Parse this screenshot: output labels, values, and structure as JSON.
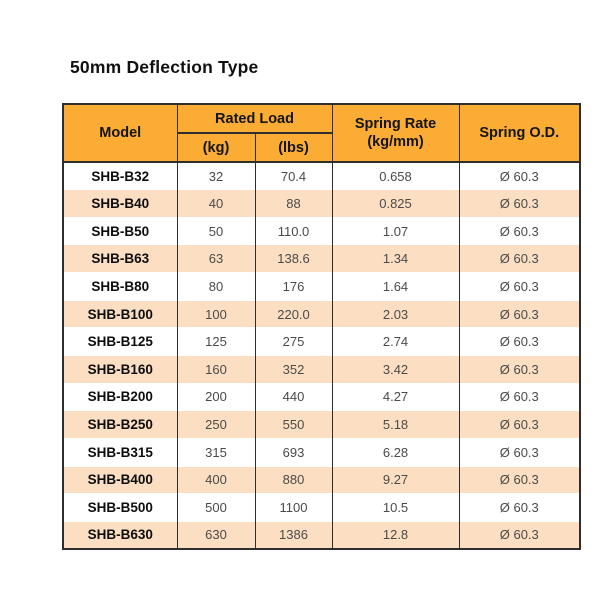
{
  "title": "50mm Deflection Type",
  "table": {
    "columns": {
      "model": "Model",
      "rated_load": "Rated Load",
      "kg": "(kg)",
      "lbs": "(lbs)",
      "spring_rate_line1": "Spring Rate",
      "spring_rate_line2": "(kg/mm)",
      "spring_od": "Spring O.D."
    },
    "rows": [
      {
        "model": "SHB-B32",
        "kg": "32",
        "lbs": "70.4",
        "spring_rate": "0.658",
        "spring_od": "Ø 60.3"
      },
      {
        "model": "SHB-B40",
        "kg": "40",
        "lbs": "88",
        "spring_rate": "0.825",
        "spring_od": "Ø 60.3"
      },
      {
        "model": "SHB-B50",
        "kg": "50",
        "lbs": "110.0",
        "spring_rate": "1.07",
        "spring_od": "Ø 60.3"
      },
      {
        "model": "SHB-B63",
        "kg": "63",
        "lbs": "138.6",
        "spring_rate": "1.34",
        "spring_od": "Ø 60.3"
      },
      {
        "model": "SHB-B80",
        "kg": "80",
        "lbs": "176",
        "spring_rate": "1.64",
        "spring_od": "Ø 60.3"
      },
      {
        "model": "SHB-B100",
        "kg": "100",
        "lbs": "220.0",
        "spring_rate": "2.03",
        "spring_od": "Ø 60.3"
      },
      {
        "model": "SHB-B125",
        "kg": "125",
        "lbs": "275",
        "spring_rate": "2.74",
        "spring_od": "Ø 60.3"
      },
      {
        "model": "SHB-B160",
        "kg": "160",
        "lbs": "352",
        "spring_rate": "3.42",
        "spring_od": "Ø 60.3"
      },
      {
        "model": "SHB-B200",
        "kg": "200",
        "lbs": "440",
        "spring_rate": "4.27",
        "spring_od": "Ø 60.3"
      },
      {
        "model": "SHB-B250",
        "kg": "250",
        "lbs": "550",
        "spring_rate": "5.18",
        "spring_od": "Ø 60.3"
      },
      {
        "model": "SHB-B315",
        "kg": "315",
        "lbs": "693",
        "spring_rate": "6.28",
        "spring_od": "Ø 60.3"
      },
      {
        "model": "SHB-B400",
        "kg": "400",
        "lbs": "880",
        "spring_rate": "9.27",
        "spring_od": "Ø 60.3"
      },
      {
        "model": "SHB-B500",
        "kg": "500",
        "lbs": "1100",
        "spring_rate": "10.5",
        "spring_od": "Ø 60.3"
      },
      {
        "model": "SHB-B630",
        "kg": "630",
        "lbs": "1386",
        "spring_rate": "12.8",
        "spring_od": "Ø 60.3"
      }
    ]
  },
  "colors": {
    "header_bg": "#FAAC35",
    "stripe_bg": "#FCDFC2",
    "border": "#2E2E2E",
    "title_text": "#111111",
    "body_text": "#4A4A4A",
    "model_text": "#0D0D0D"
  }
}
